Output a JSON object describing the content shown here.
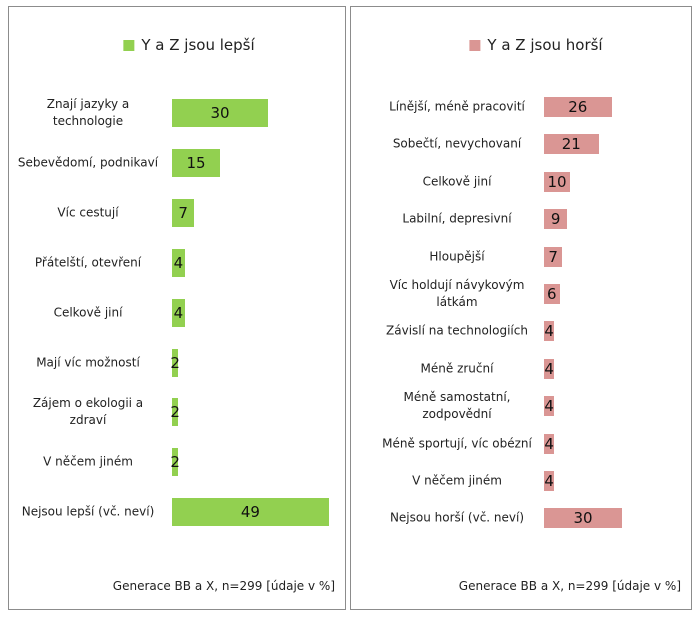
{
  "chart_data": [
    {
      "type": "bar",
      "categories": [
        "Znají jazyky a technologie",
        "Sebevědomí, podnikaví",
        "Víc cestují",
        "Přátelští, otevření",
        "Celkově jiní",
        "Mají víc možností",
        "Zájem o ekologii a zdraví",
        "V něčem jiném",
        "Nejsou lepší (vč. neví)"
      ],
      "series": [
        {
          "name": "Y a Z jsou lepší",
          "color": "#92d050",
          "values": [
            30,
            15,
            7,
            4,
            4,
            2,
            2,
            2,
            49
          ]
        }
      ],
      "xlim": [
        0,
        50
      ],
      "note": "Generace BB a X, n=299 [údaje v %]"
    },
    {
      "type": "bar",
      "categories": [
        "Línější, méně pracovití",
        "Sobečtí, nevychovaní",
        "Celkově jiní",
        "Labilní, depresivní",
        "Hloupější",
        "Víc holdují návykovým látkám",
        "Závislí na technologiích",
        "Méně zruční",
        "Méně samostatní, zodpovědní",
        "Méně sportují, víc obézní",
        "V něčem jiném",
        "Nejsou horší (vč. neví)"
      ],
      "series": [
        {
          "name": "Y a Z jsou horší",
          "color": "#da9694",
          "values": [
            26,
            21,
            10,
            9,
            7,
            6,
            4,
            4,
            4,
            4,
            4,
            30
          ]
        }
      ],
      "xlim": [
        0,
        50
      ],
      "note": "Generace BB a X, n=299 [údaje v %]"
    }
  ]
}
